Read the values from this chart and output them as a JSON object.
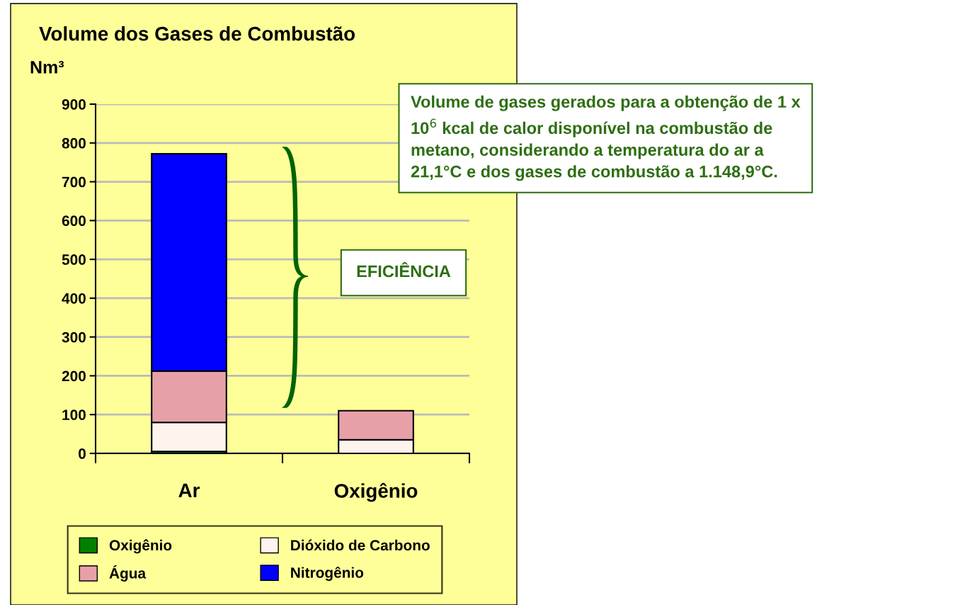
{
  "chart_data": {
    "type": "bar",
    "title": "Volume dos Gases de Combustão",
    "ylabel": "Nm³",
    "categories": [
      "Ar",
      "Oxigênio"
    ],
    "stacked": true,
    "series": [
      {
        "name": "Oxigênio",
        "color": "#008000",
        "values": [
          5,
          0
        ]
      },
      {
        "name": "Dióxido de Carbono",
        "color": "#fff3ee",
        "values": [
          75,
          35
        ]
      },
      {
        "name": "Água",
        "color": "#e8a0a8",
        "values": [
          132,
          75
        ]
      },
      {
        "name": "Nitrogênio",
        "color": "#0000ff",
        "values": [
          560,
          null
        ]
      }
    ],
    "ylim": [
      0,
      900
    ],
    "yticks": [
      0,
      100,
      200,
      300,
      400,
      500,
      600,
      700,
      800,
      900
    ],
    "grid": "y",
    "legend": "bottom",
    "annotations": [
      "Volume de gases gerados para a obtenção de 1 x\n10$^{6}$ kcal de calor disponível na combustão de\nmetano, considerando a temperatura do ar a\n21,1°C e dos gases de combustão a 1.148,9°C.",
      "EFICIÊNCIA"
    ]
  }
}
